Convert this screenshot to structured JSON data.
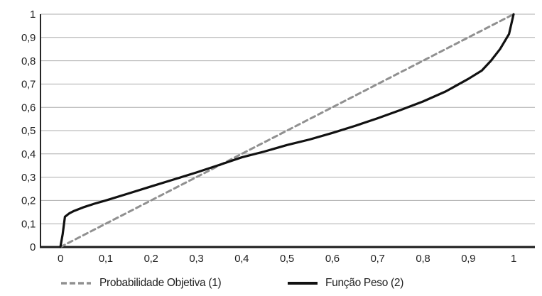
{
  "chart_data": {
    "type": "line",
    "title": "",
    "xlabel": "",
    "ylabel": "",
    "xlim": [
      0,
      1
    ],
    "ylim": [
      0,
      1
    ],
    "grid": "horizontal",
    "legend_position": "bottom",
    "x_ticks": {
      "values": [
        0,
        0.1,
        0.2,
        0.3,
        0.4,
        0.5,
        0.6,
        0.7,
        0.8,
        0.9,
        1
      ],
      "labels": [
        "0",
        "0,1",
        "0,2",
        "0,3",
        "0,4",
        "0,5",
        "0,6",
        "0,7",
        "0,8",
        "0,9",
        "1"
      ]
    },
    "y_ticks": {
      "values": [
        0,
        0.1,
        0.2,
        0.3,
        0.4,
        0.5,
        0.6,
        0.7,
        0.8,
        0.9,
        1
      ],
      "labels": [
        "0",
        "0,1",
        "0,2",
        "0,3",
        "0,4",
        "0,5",
        "0,6",
        "0,7",
        "0,8",
        "0,9",
        "1"
      ]
    },
    "series": [
      {
        "name": "Probabilidade Objetiva (1)",
        "style": "dashed",
        "color": "#909090",
        "points": [
          [
            0,
            0
          ],
          [
            1,
            1
          ]
        ]
      },
      {
        "name": "Função Peso (2)",
        "style": "solid",
        "color": "#111111",
        "points": [
          [
            0,
            0
          ],
          [
            0.005,
            0.055
          ],
          [
            0.01,
            0.13
          ],
          [
            0.02,
            0.145
          ],
          [
            0.03,
            0.155
          ],
          [
            0.05,
            0.17
          ],
          [
            0.075,
            0.186
          ],
          [
            0.1,
            0.2
          ],
          [
            0.15,
            0.23
          ],
          [
            0.2,
            0.26
          ],
          [
            0.25,
            0.29
          ],
          [
            0.3,
            0.32
          ],
          [
            0.35,
            0.352
          ],
          [
            0.4,
            0.385
          ],
          [
            0.45,
            0.41
          ],
          [
            0.5,
            0.438
          ],
          [
            0.55,
            0.462
          ],
          [
            0.6,
            0.49
          ],
          [
            0.65,
            0.52
          ],
          [
            0.7,
            0.553
          ],
          [
            0.75,
            0.588
          ],
          [
            0.8,
            0.625
          ],
          [
            0.85,
            0.668
          ],
          [
            0.9,
            0.722
          ],
          [
            0.93,
            0.758
          ],
          [
            0.95,
            0.8
          ],
          [
            0.97,
            0.85
          ],
          [
            0.99,
            0.915
          ],
          [
            1,
            1
          ]
        ]
      }
    ]
  },
  "colors": {
    "background": "#ffffff",
    "gridline": "#adadad",
    "y_axis": "#262626",
    "x_axis": "#1a1a1a",
    "tick_text": "#1f1f1f",
    "dashed_series": "#909090",
    "solid_series": "#111111"
  }
}
